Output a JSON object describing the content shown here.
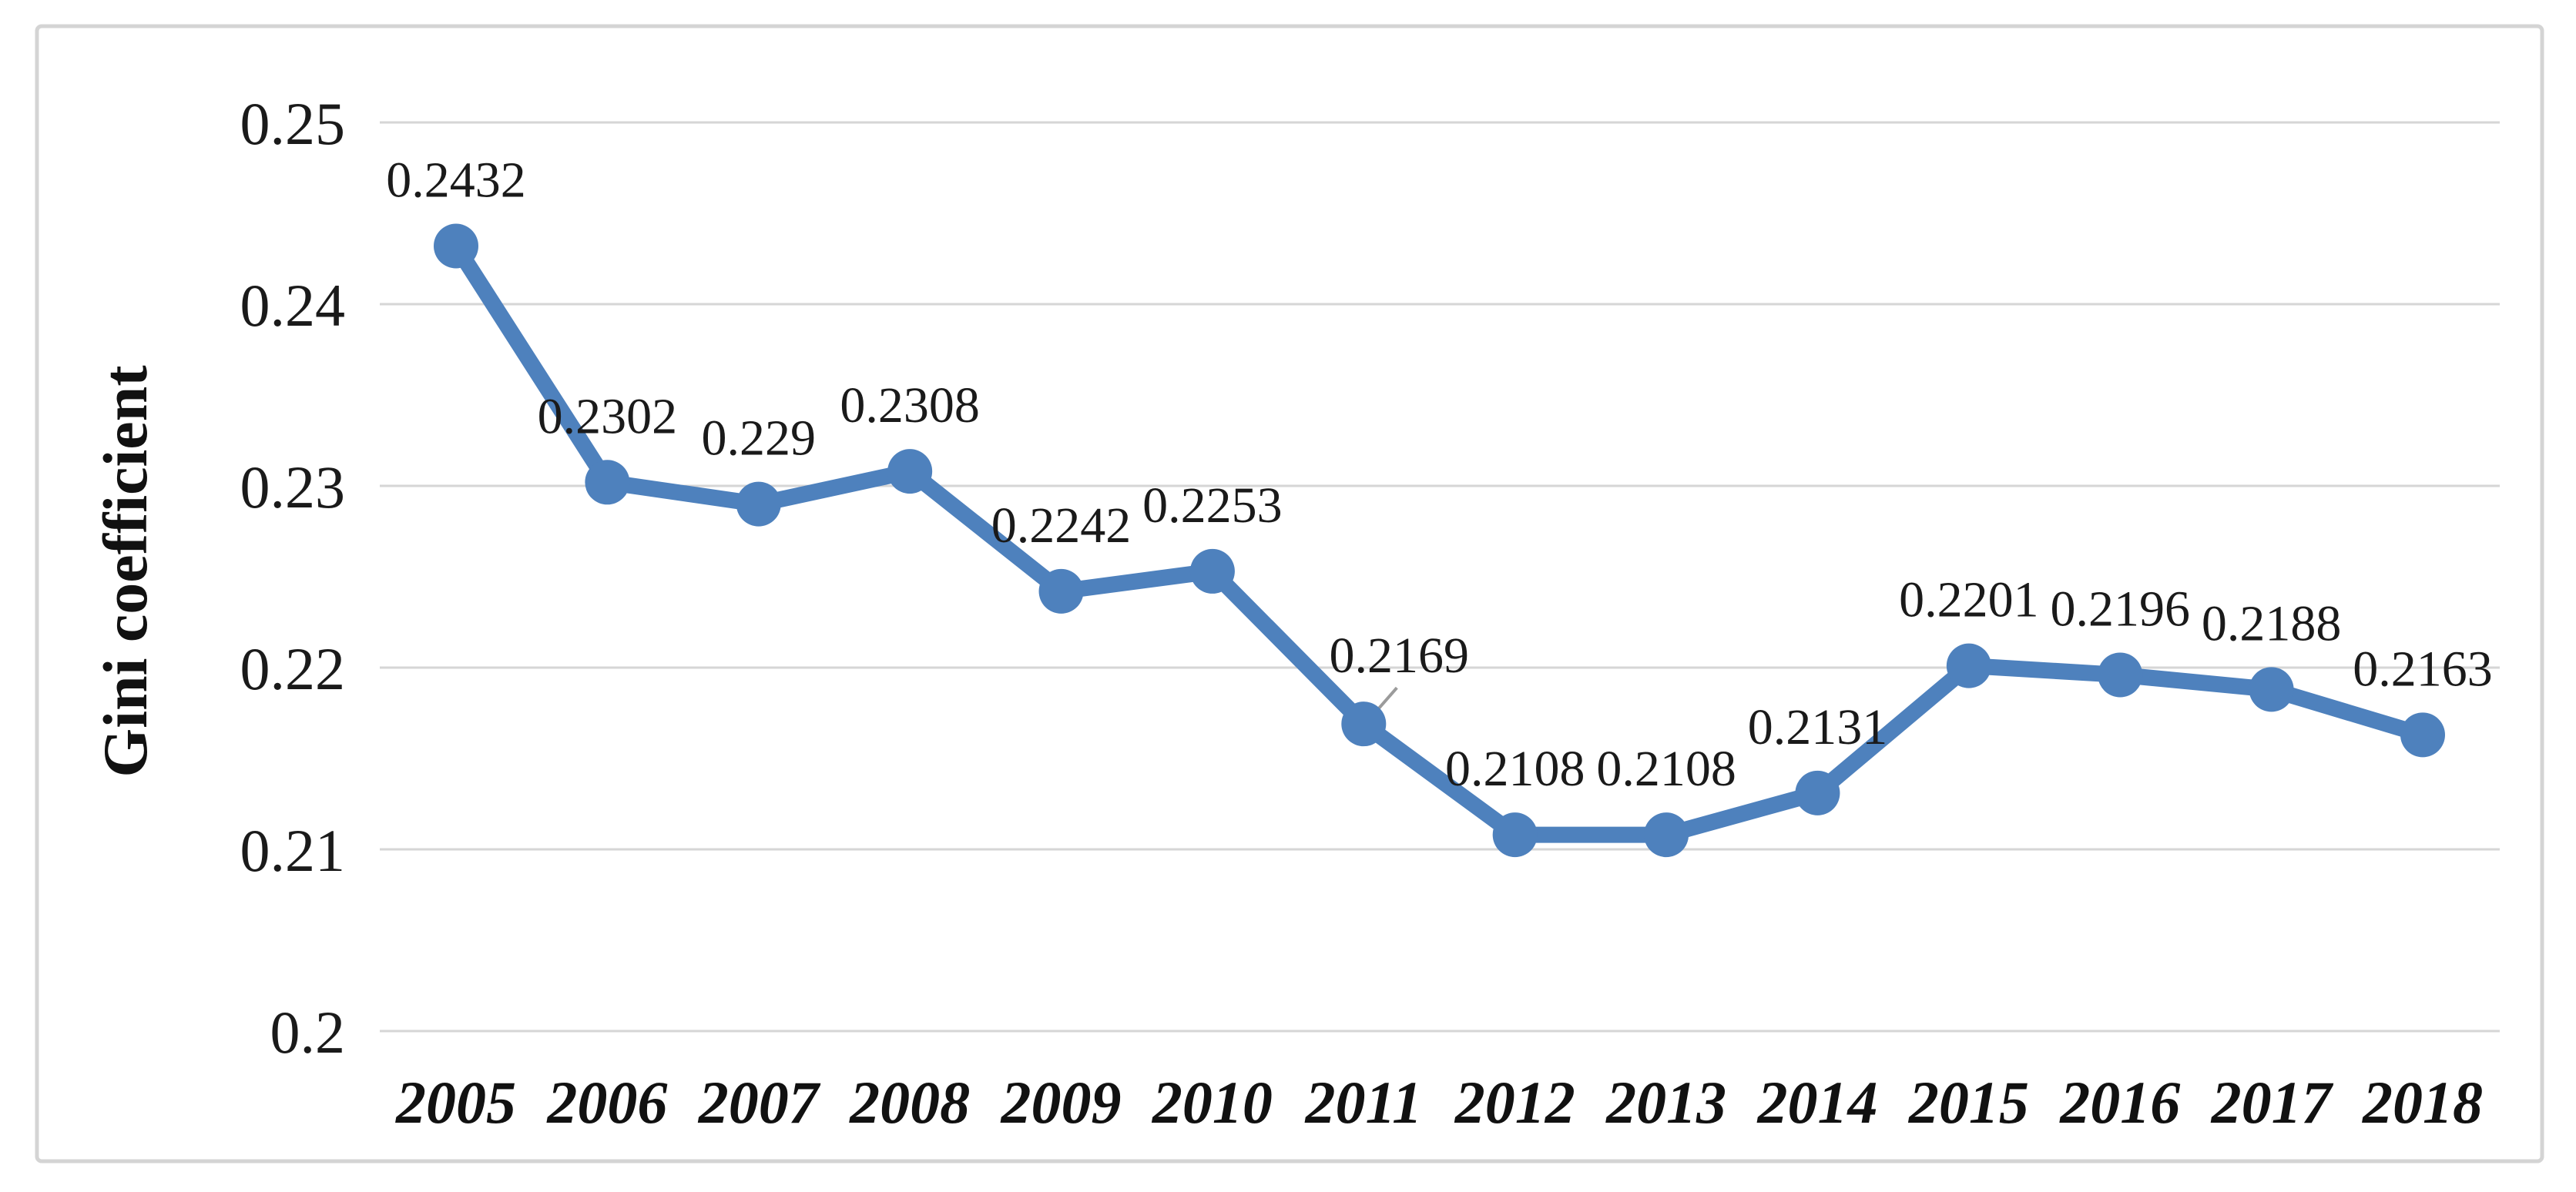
{
  "chart_data": {
    "type": "line",
    "title": "",
    "xlabel": "",
    "ylabel": "Gini coefficient",
    "categories": [
      "2005",
      "2006",
      "2007",
      "2008",
      "2009",
      "2010",
      "2011",
      "2012",
      "2013",
      "2014",
      "2015",
      "2016",
      "2017",
      "2018"
    ],
    "values": [
      0.2432,
      0.2302,
      0.229,
      0.2308,
      0.2242,
      0.2253,
      0.2169,
      0.2108,
      0.2108,
      0.2131,
      0.2201,
      0.2196,
      0.2188,
      0.2163
    ],
    "point_labels": [
      "0.2432",
      "0.2302",
      "0.229",
      "0.2308",
      "0.2242",
      "0.2253",
      "0.2169",
      "0.2108",
      "0.2108",
      "0.2131",
      "0.2201",
      "0.2196",
      "0.2188",
      "0.2163"
    ],
    "y_ticks": [
      {
        "label": "0.25",
        "value": 0.25
      },
      {
        "label": "0.24",
        "value": 0.24
      },
      {
        "label": "0.23",
        "value": 0.23
      },
      {
        "label": "0.22",
        "value": 0.22
      },
      {
        "label": "0.21",
        "value": 0.21
      },
      {
        "label": "0.2",
        "value": 0.2
      }
    ],
    "ylim": [
      0.2,
      0.25
    ],
    "grid": true,
    "legend": "none",
    "marker": "circle",
    "leader_line_category": "2011",
    "colors": {
      "line": "#4E81BD",
      "marker": "#4E81BD",
      "gridline": "#D6D6D6",
      "frame": "#D4D4D4",
      "text": "#1A1A1A",
      "leader": "#9B9B9B",
      "background": "#FFFFFF"
    }
  }
}
